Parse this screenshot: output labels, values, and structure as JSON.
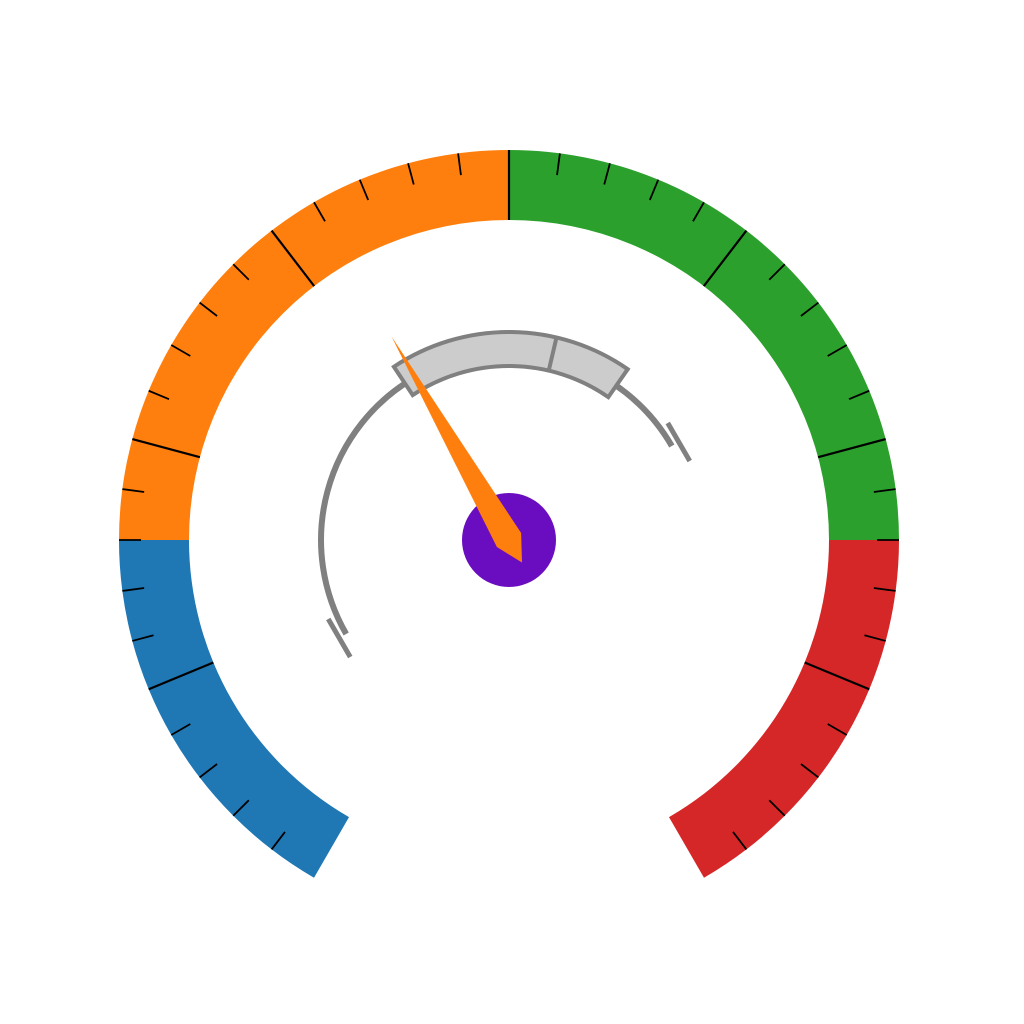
{
  "chart_data": {
    "type": "gauge",
    "title": "",
    "scale": {
      "min": 0,
      "max": 100,
      "start_angle_deg": 240,
      "end_angle_deg": -60,
      "major_tick_step": 12.5,
      "minor_tick_step": 2.5
    },
    "bands": [
      {
        "name": "",
        "from": 0,
        "to": 20,
        "color": "#1f77b4"
      },
      {
        "name": "",
        "from": 20,
        "to": 50,
        "color": "#ff7f0e"
      },
      {
        "name": "",
        "from": 50,
        "to": 80,
        "color": "#2ca02c"
      },
      {
        "name": "",
        "from": 80,
        "to": 100,
        "color": "#d62728"
      }
    ],
    "needle": {
      "value": 40,
      "color": "#ff7f0e",
      "hub_color": "#6a0dc0"
    },
    "secondary_scale": {
      "min": 0,
      "max": 100,
      "start_angle_deg": 210,
      "end_angle_deg": 30,
      "arc_color": "#808080",
      "filled_from": 48,
      "filled_to": 86,
      "marker": 74,
      "fill_color": "#cccccc"
    }
  }
}
